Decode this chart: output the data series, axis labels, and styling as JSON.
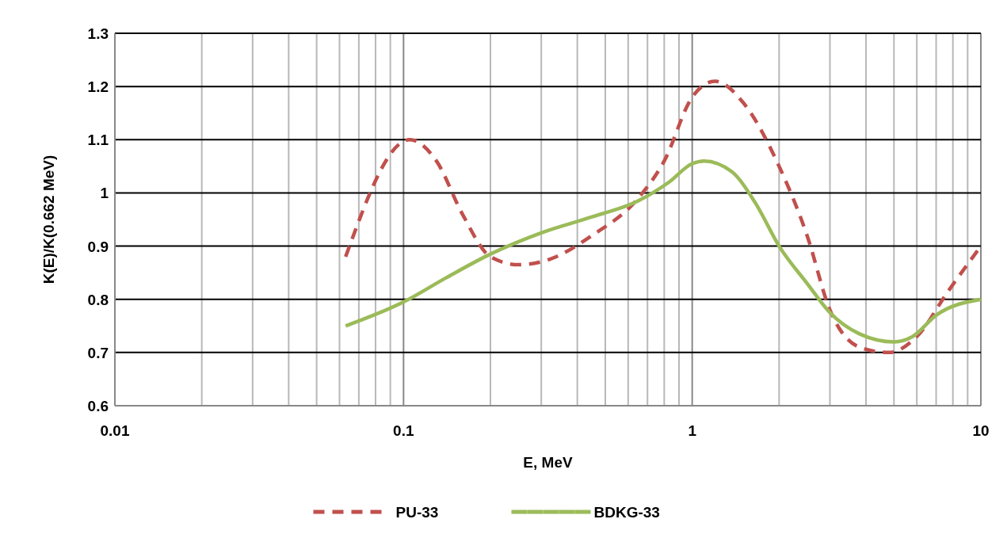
{
  "chart_data": {
    "type": "line",
    "xlabel": "E, MeV",
    "ylabel": "K(E)/K(0.662  MeV)",
    "log": "x",
    "xlim": [
      0.01,
      10
    ],
    "ylim": [
      0.6,
      1.3
    ],
    "xticks": [
      0.01,
      {
        "value": 0.02,
        "label": null
      },
      {
        "value": 0.03,
        "label": null
      },
      {
        "value": 0.04,
        "label": null
      },
      {
        "value": 0.05,
        "label": null
      },
      {
        "value": 0.06,
        "label": null
      },
      {
        "value": 0.07,
        "label": null
      },
      {
        "value": 0.08,
        "label": null
      },
      {
        "value": 0.09,
        "label": null
      },
      0.1,
      {
        "value": 0.2,
        "label": null
      },
      {
        "value": 0.3,
        "label": null
      },
      {
        "value": 0.4,
        "label": null
      },
      {
        "value": 0.5,
        "label": null
      },
      {
        "value": 0.6,
        "label": null
      },
      {
        "value": 0.7,
        "label": null
      },
      {
        "value": 0.8,
        "label": null
      },
      {
        "value": 0.9,
        "label": null
      },
      1,
      {
        "value": 2,
        "label": null
      },
      {
        "value": 3,
        "label": null
      },
      {
        "value": 4,
        "label": null
      },
      {
        "value": 5,
        "label": null
      },
      {
        "value": 6,
        "label": null
      },
      {
        "value": 7,
        "label": null
      },
      {
        "value": 8,
        "label": null
      },
      {
        "value": 9,
        "label": null
      },
      10
    ],
    "yticks": [
      0.6,
      0.7,
      0.8,
      0.9,
      {
        "value": 1,
        "label": "1"
      },
      1.1,
      1.2,
      1.3
    ],
    "grid": true,
    "legend": "bottom",
    "series": [
      {
        "name": "PU-33",
        "color": "#c0504d",
        "line_style": "dashed",
        "x": [
          0.063,
          0.105,
          0.13,
          0.16,
          0.2,
          0.25,
          0.32,
          0.45,
          0.65,
          0.8,
          1.0,
          1.2,
          1.5,
          2,
          2.5,
          3,
          3.8,
          4.8,
          6,
          7.7,
          10
        ],
        "values": [
          0.88,
          1.1,
          1.06,
          0.96,
          0.88,
          0.865,
          0.875,
          0.92,
          0.99,
          1.06,
          1.18,
          1.21,
          1.17,
          1.05,
          0.92,
          0.78,
          0.71,
          0.7,
          0.73,
          0.815,
          0.9
        ]
      },
      {
        "name": "BDKG-33",
        "color": "#9bbb59",
        "line_style": "solid",
        "x": [
          0.063,
          0.1,
          0.14,
          0.2,
          0.3,
          0.45,
          0.65,
          0.83,
          1.0,
          1.1,
          1.37,
          1.66,
          2,
          2.5,
          3,
          3.8,
          5,
          5.8,
          7,
          10
        ],
        "values": [
          0.75,
          0.795,
          0.84,
          0.885,
          0.925,
          0.955,
          0.985,
          1.02,
          1.055,
          1.06,
          1.04,
          0.98,
          0.9,
          0.83,
          0.775,
          0.735,
          0.72,
          0.73,
          0.77,
          0.8
        ]
      }
    ]
  }
}
